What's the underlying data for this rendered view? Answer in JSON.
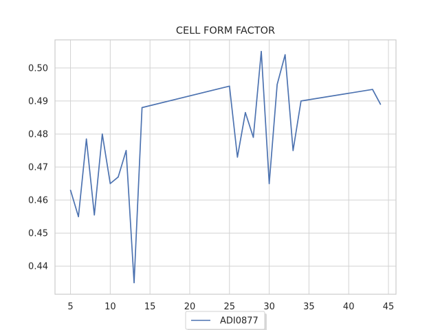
{
  "chart_data": {
    "type": "line",
    "title": "CELL FORM FACTOR",
    "xlabel": "",
    "ylabel": "",
    "xlim": [
      3.05,
      45.95
    ],
    "ylim": [
      0.4315,
      0.5085
    ],
    "xticks": [
      5,
      10,
      15,
      20,
      25,
      30,
      35,
      40,
      45
    ],
    "yticks": [
      0.44,
      0.45,
      0.46,
      0.47,
      0.48,
      0.49,
      0.5
    ],
    "xtick_labels": [
      "5",
      "10",
      "15",
      "20",
      "25",
      "30",
      "35",
      "40",
      "45"
    ],
    "ytick_labels": [
      "0.44",
      "0.45",
      "0.46",
      "0.47",
      "0.48",
      "0.49",
      "0.50"
    ],
    "grid": true,
    "legend_position": "lower-center",
    "series": [
      {
        "name": "ADI0877",
        "color": "#4c72b0",
        "x": [
          5,
          6,
          7,
          8,
          9,
          10,
          11,
          12,
          13,
          14,
          25,
          26,
          27,
          28,
          29,
          30,
          31,
          32,
          33,
          34,
          43,
          44
        ],
        "y": [
          0.463,
          0.455,
          0.4785,
          0.4555,
          0.48,
          0.465,
          0.467,
          0.475,
          0.435,
          0.488,
          0.4945,
          0.473,
          0.4865,
          0.479,
          0.505,
          0.465,
          0.495,
          0.504,
          0.475,
          0.49,
          0.4935,
          0.489
        ]
      }
    ]
  }
}
